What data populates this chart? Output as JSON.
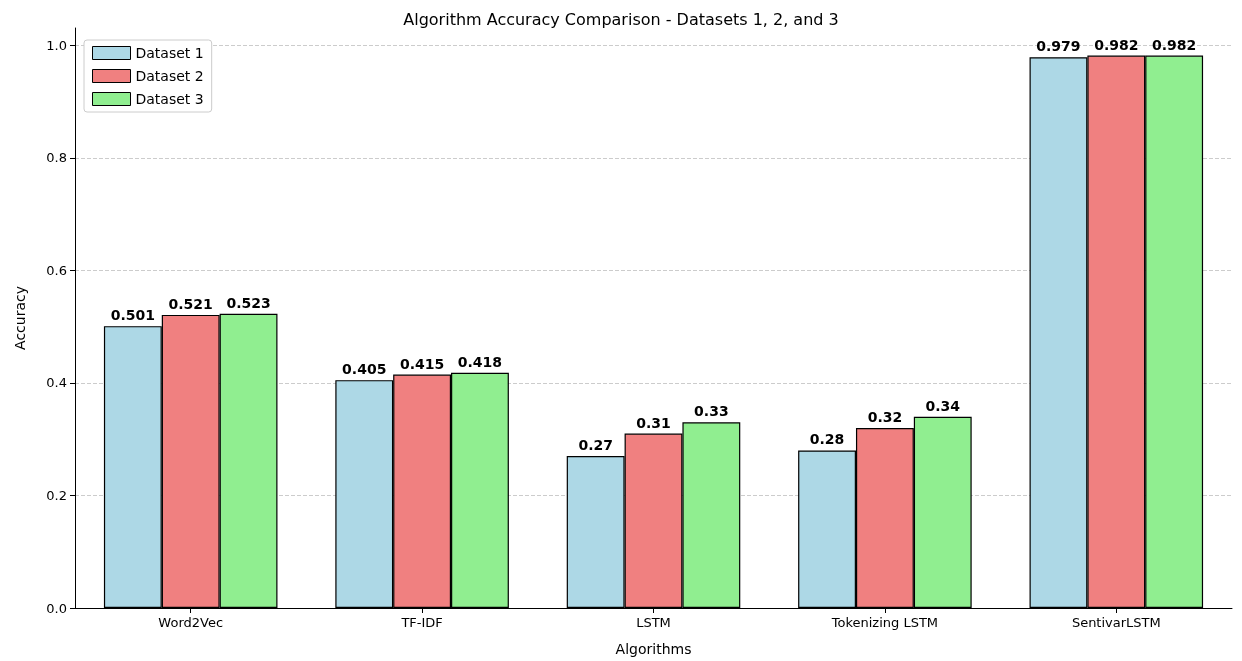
{
  "chart_data": {
    "type": "bar",
    "title": "Algorithm Accuracy Comparison - Datasets 1, 2, and 3",
    "xlabel": "Algorithms",
    "ylabel": "Accuracy",
    "categories": [
      "Word2Vec",
      "TF-IDF",
      "LSTM",
      "Tokenizing LSTM",
      "SentivarLSTM"
    ],
    "series": [
      {
        "name": "Dataset 1",
        "color": "#add8e6",
        "values": [
          0.501,
          0.405,
          0.27,
          0.28,
          0.979
        ]
      },
      {
        "name": "Dataset 2",
        "color": "#f08080",
        "values": [
          0.521,
          0.415,
          0.31,
          0.32,
          0.982
        ]
      },
      {
        "name": "Dataset 3",
        "color": "#90ee90",
        "values": [
          0.523,
          0.418,
          0.33,
          0.34,
          0.982
        ]
      }
    ],
    "ylim": [
      0,
      1.031
    ],
    "yticks": [
      {
        "value": 0,
        "label": "0.0"
      },
      0.2,
      0.4,
      0.6,
      0.8,
      {
        "value": 1,
        "label": "1.0"
      }
    ],
    "grid": "y",
    "legend": "top left",
    "data_labels": true
  }
}
